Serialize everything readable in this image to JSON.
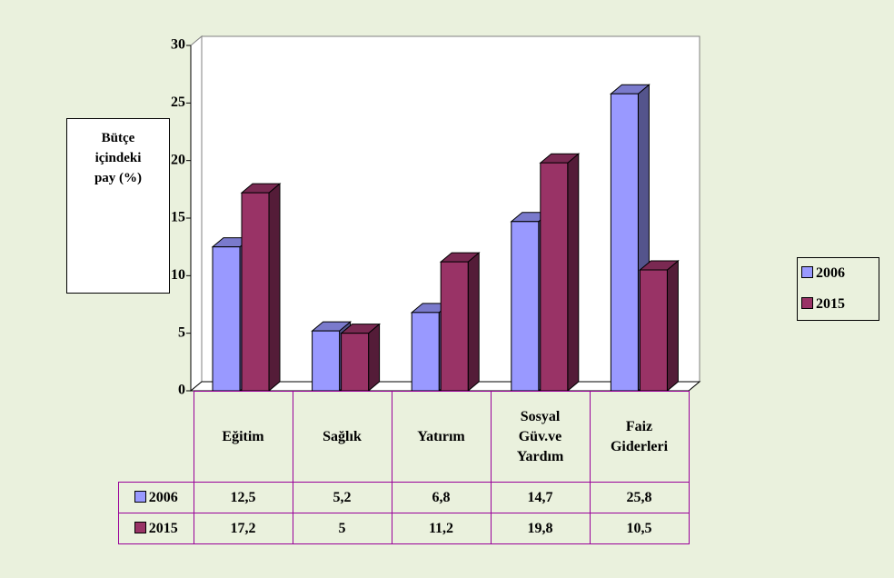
{
  "chart_data": {
    "type": "bar3d",
    "y_axis_label": "Bütçe içindeki pay (%)",
    "categories": [
      "Eğitim",
      "Sağlık",
      "Yatırım",
      "Sosyal Güv.ve Yardım",
      "Faiz Giderleri"
    ],
    "series": [
      {
        "name": "2006",
        "color": "#9999ff",
        "values": [
          12.5,
          5.2,
          6.8,
          14.7,
          25.8
        ],
        "value_labels": [
          "12,5",
          "5,2",
          "6,8",
          "14,7",
          "25,8"
        ]
      },
      {
        "name": "2015",
        "color": "#993366",
        "values": [
          17.2,
          5,
          11.2,
          19.8,
          10.5
        ],
        "value_labels": [
          "17,2",
          "5",
          "11,2",
          "19,8",
          "10,5"
        ]
      }
    ],
    "ylim": [
      0,
      30
    ],
    "yticks": [
      0,
      5,
      10,
      15,
      20,
      25,
      30
    ],
    "legend": "right"
  }
}
